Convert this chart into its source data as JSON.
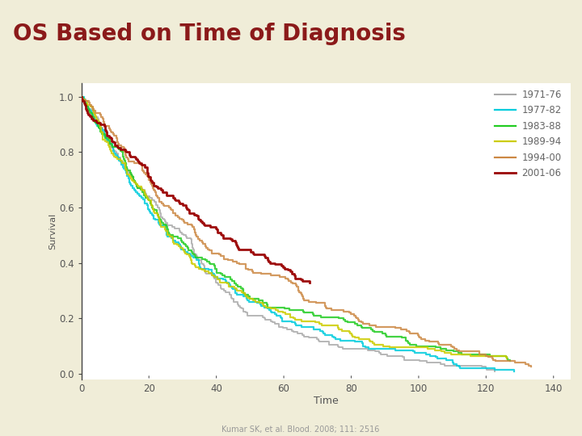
{
  "title": "OS Based on Time of Diagnosis",
  "subtitle": "Kumar SK, et al. Blood. 2008; 111: 2516",
  "title_color": "#8B1A1A",
  "bg_color": "#F0EDD8",
  "bg_plot_color": "#FFFFFF",
  "xlabel": "Time",
  "ylabel": "Survival",
  "xlim": [
    0,
    145
  ],
  "ylim": [
    -0.02,
    1.05
  ],
  "xticks": [
    0,
    20,
    40,
    60,
    80,
    100,
    120,
    140
  ],
  "ytick_vals": [
    0.0,
    0.2,
    0.4,
    0.6,
    0.8,
    1.0
  ],
  "ytick_labels": [
    "0.0",
    "0.2",
    "0.4",
    "0.6",
    "0.8",
    "1.0"
  ],
  "series": [
    {
      "label": "1971-76",
      "color": "#AAAAAA",
      "lw": 1.4,
      "max_t": 130,
      "shape": 1.15,
      "scale": 38.0
    },
    {
      "label": "1977-82",
      "color": "#00CCDD",
      "lw": 1.6,
      "max_t": 130,
      "shape": 1.12,
      "scale": 39.0
    },
    {
      "label": "1983-88",
      "color": "#22CC22",
      "lw": 1.6,
      "max_t": 130,
      "shape": 1.1,
      "scale": 41.0
    },
    {
      "label": "1989-94",
      "color": "#CCCC00",
      "lw": 1.6,
      "max_t": 130,
      "shape": 1.08,
      "scale": 43.0
    },
    {
      "label": "1994-00",
      "color": "#CC8844",
      "lw": 1.6,
      "max_t": 136,
      "shape": 1.05,
      "scale": 50.0
    },
    {
      "label": "2001-06",
      "color": "#990000",
      "lw": 2.0,
      "max_t": 68,
      "shape": 1.02,
      "scale": 62.0,
      "step": true
    }
  ]
}
